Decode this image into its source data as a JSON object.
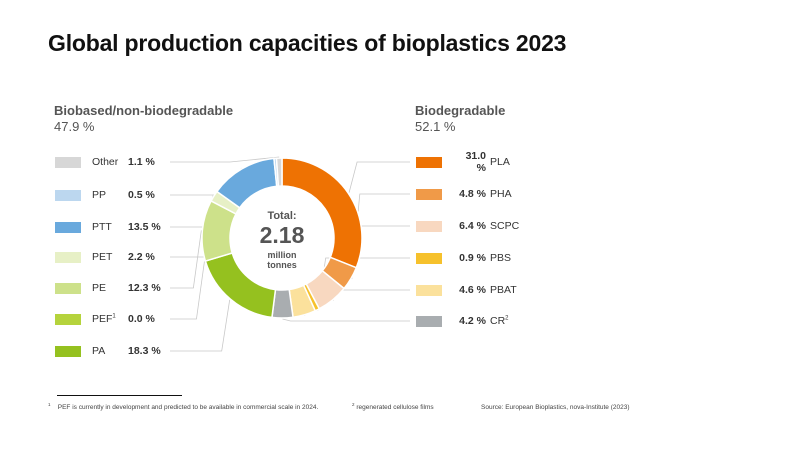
{
  "title": "Global production capacities of bioplastics 2023",
  "groups": {
    "left": {
      "label": "Biobased/non-biodegradable",
      "pct": "47.9 %"
    },
    "right": {
      "label": "Biodegradable",
      "pct": "52.1 %"
    }
  },
  "center": {
    "label": "Total:",
    "value": "2.18",
    "unit_line1": "million",
    "unit_line2": "tonnes"
  },
  "chart_data": {
    "type": "pie",
    "variant": "donut",
    "title": "Global production capacities of bioplastics 2023",
    "total": "2.18 million tonnes",
    "unit": "%",
    "segments": [
      {
        "id": "pla",
        "name": "PLA",
        "value": 31.0,
        "label": "31.0 %",
        "group": "Biodegradable",
        "color": "#ee7203"
      },
      {
        "id": "pha",
        "name": "PHA",
        "value": 4.8,
        "label": "4.8 %",
        "group": "Biodegradable",
        "color": "#f09a48"
      },
      {
        "id": "scpc",
        "name": "SCPC",
        "value": 6.4,
        "label": "6.4 %",
        "group": "Biodegradable",
        "color": "#f8d8c0"
      },
      {
        "id": "pbs",
        "name": "PBS",
        "value": 0.9,
        "label": "0.9 %",
        "group": "Biodegradable",
        "color": "#f6c12c"
      },
      {
        "id": "pbat",
        "name": "PBAT",
        "value": 4.6,
        "label": "4.6 %",
        "group": "Biodegradable",
        "color": "#fbe19c"
      },
      {
        "id": "cr",
        "name": "CR",
        "sup": "2",
        "value": 4.2,
        "label": "4.2 %",
        "group": "Biodegradable",
        "color": "#a9adb0"
      },
      {
        "id": "pa",
        "name": "PA",
        "value": 18.3,
        "label": "18.3 %",
        "group": "Biobased/non-biodegradable",
        "color": "#95c11f"
      },
      {
        "id": "pef",
        "name": "PEF",
        "sup": "1",
        "value": 0.0,
        "label": "0.0 %",
        "group": "Biobased/non-biodegradable",
        "color": "#b5d33c"
      },
      {
        "id": "pe",
        "name": "PE",
        "value": 12.3,
        "label": "12.3 %",
        "group": "Biobased/non-biodegradable",
        "color": "#cde18a"
      },
      {
        "id": "pet",
        "name": "PET",
        "value": 2.2,
        "label": "2.2 %",
        "group": "Biobased/non-biodegradable",
        "color": "#e7f0c6"
      },
      {
        "id": "ptt",
        "name": "PTT",
        "value": 13.5,
        "label": "13.5 %",
        "group": "Biobased/non-biodegradable",
        "color": "#69a9dd"
      },
      {
        "id": "pp",
        "name": "PP",
        "value": 0.5,
        "label": "0.5 %",
        "group": "Biobased/non-biodegradable",
        "color": "#bcd7ef"
      },
      {
        "id": "other",
        "name": "Other",
        "value": 1.1,
        "label": "1.1 %",
        "group": "Biobased/non-biodegradable",
        "color": "#d7d7d7"
      }
    ]
  },
  "footnotes": {
    "note1_mark": "1",
    "note1": "PEF is currently in development and predicted to be available in commercial scale in 2024.",
    "note2_mark": "2",
    "note2": "regenerated cellulose films",
    "source": "Source: European Bioplastics, nova-Institute (2023)"
  }
}
